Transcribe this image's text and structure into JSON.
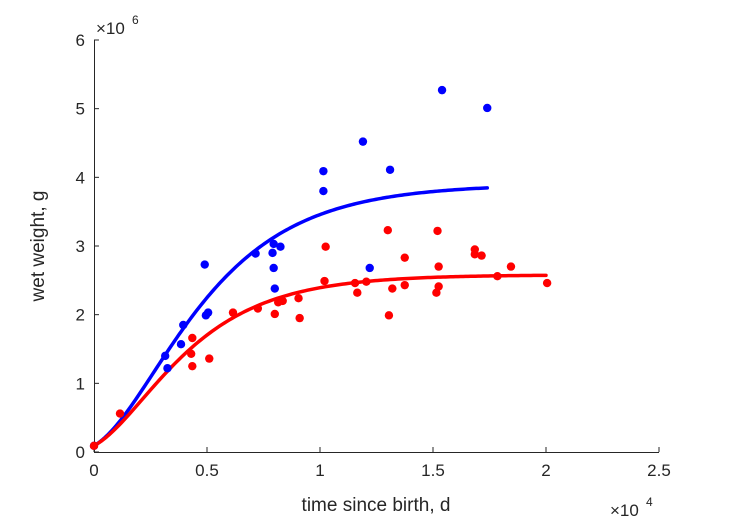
{
  "chart_data": {
    "type": "scatter",
    "xlabel": "time since birth, d",
    "ylabel": "wet weight, g",
    "xlim": [
      0,
      25000
    ],
    "ylim": [
      0,
      6000000
    ],
    "x_ticks": [
      0,
      5000,
      10000,
      15000,
      20000,
      25000
    ],
    "x_tick_labels": [
      "0",
      "0.5",
      "1",
      "1.5",
      "2",
      "2.5"
    ],
    "y_ticks": [
      0,
      1000000,
      2000000,
      3000000,
      4000000,
      5000000,
      6000000
    ],
    "y_tick_labels": [
      "0",
      "1",
      "2",
      "3",
      "4",
      "5",
      "6"
    ],
    "x_exponent": {
      "base": "×10",
      "power": "4"
    },
    "y_exponent": {
      "base": "×10",
      "power": "6"
    },
    "grid": false,
    "series": [
      {
        "color": "#0000ff",
        "points": [
          [
            0,
            90000
          ],
          [
            3150,
            1400000
          ],
          [
            3250,
            1220000
          ],
          [
            3850,
            1570000
          ],
          [
            3950,
            1850000
          ],
          [
            4900,
            2730000
          ],
          [
            4950,
            1990000
          ],
          [
            5050,
            2030000
          ],
          [
            7150,
            2890000
          ],
          [
            7900,
            2900000
          ],
          [
            7950,
            3030000
          ],
          [
            7950,
            2680000
          ],
          [
            8000,
            2380000
          ],
          [
            8250,
            2990000
          ],
          [
            10150,
            4090000
          ],
          [
            10150,
            3800000
          ],
          [
            11900,
            4520000
          ],
          [
            12200,
            2680000
          ],
          [
            13100,
            4110000
          ],
          [
            15400,
            5270000
          ],
          [
            17400,
            5010000
          ]
        ],
        "fit": {
          "type": "von-bertalanffy",
          "x0": 0,
          "y0": 90000,
          "ymax": 3900000,
          "rate": 0.00029,
          "xmax": 17400
        }
      },
      {
        "color": "#ff0000",
        "points": [
          [
            0,
            90000
          ],
          [
            1150,
            560000
          ],
          [
            4300,
            1430000
          ],
          [
            4350,
            1250000
          ],
          [
            4350,
            1660000
          ],
          [
            5100,
            1360000
          ],
          [
            6150,
            2030000
          ],
          [
            7250,
            2090000
          ],
          [
            8000,
            2010000
          ],
          [
            8150,
            2180000
          ],
          [
            8350,
            2200000
          ],
          [
            9050,
            2240000
          ],
          [
            9100,
            1950000
          ],
          [
            10250,
            2990000
          ],
          [
            10200,
            2490000
          ],
          [
            11550,
            2460000
          ],
          [
            11650,
            2320000
          ],
          [
            12050,
            2480000
          ],
          [
            13000,
            3230000
          ],
          [
            13050,
            1990000
          ],
          [
            13200,
            2380000
          ],
          [
            13750,
            2830000
          ],
          [
            13750,
            2430000
          ],
          [
            15200,
            3220000
          ],
          [
            15250,
            2700000
          ],
          [
            15150,
            2320000
          ],
          [
            15250,
            2410000
          ],
          [
            16850,
            2950000
          ],
          [
            16850,
            2880000
          ],
          [
            17150,
            2860000
          ],
          [
            17850,
            2560000
          ],
          [
            18450,
            2700000
          ],
          [
            20050,
            2460000
          ]
        ],
        "fit": {
          "type": "von-bertalanffy",
          "x0": 0,
          "y0": 90000,
          "ymax": 2580000,
          "rate": 0.00033,
          "xmax": 20000
        }
      }
    ]
  }
}
